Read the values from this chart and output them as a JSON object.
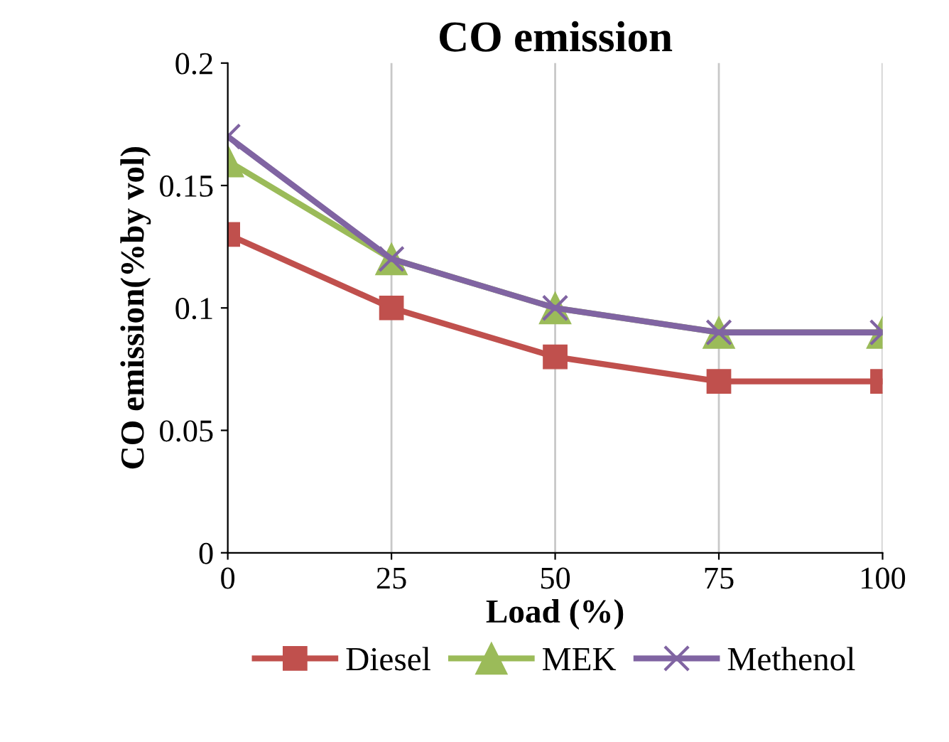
{
  "chart_data": {
    "type": "line",
    "title": "CO emission",
    "xlabel": "Load (%)",
    "ylabel": "CO emission(%by vol)",
    "x": [
      0,
      25,
      50,
      75,
      100
    ],
    "series": [
      {
        "name": "Diesel",
        "color": "#c0504d",
        "marker": "square",
        "values": [
          0.13,
          0.1,
          0.08,
          0.07,
          0.07
        ]
      },
      {
        "name": "MEK",
        "color": "#9bbb59",
        "marker": "triangle",
        "values": [
          0.16,
          0.12,
          0.1,
          0.09,
          0.09
        ]
      },
      {
        "name": "Methenol",
        "color": "#8064a2",
        "marker": "cross",
        "values": [
          0.17,
          0.12,
          0.1,
          0.09,
          0.09
        ]
      }
    ],
    "xlim": [
      0,
      100
    ],
    "xticks": [
      0,
      25,
      50,
      75,
      100
    ],
    "ylim": [
      0,
      0.2
    ],
    "yticks": [
      0,
      0.05,
      0.1,
      0.15,
      0.2
    ],
    "grid": "x",
    "legend": "bottom",
    "line_style": "solid"
  }
}
